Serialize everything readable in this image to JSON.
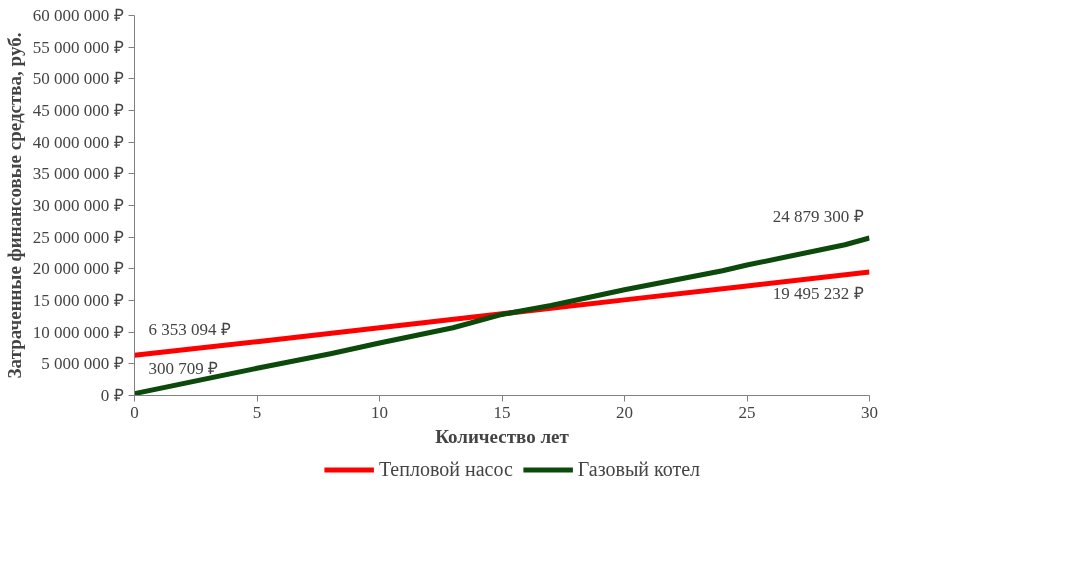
{
  "chart_data": {
    "type": "line",
    "xlabel": "Количество лет",
    "ylabel": "Затраченные финансовые средства, руб.",
    "xlim": [
      0,
      30
    ],
    "ylim": [
      0,
      60000000
    ],
    "xticks": [
      0,
      5,
      10,
      15,
      20,
      25,
      30
    ],
    "yticks": [
      {
        "value": 0,
        "label": "0 ₽"
      },
      {
        "value": 5000000,
        "label": "5 000 000 ₽"
      },
      {
        "value": 10000000,
        "label": "10 000 000 ₽"
      },
      {
        "value": 15000000,
        "label": "15 000 000 ₽"
      },
      {
        "value": 20000000,
        "label": "20 000 000 ₽"
      },
      {
        "value": 25000000,
        "label": "25 000 000 ₽"
      },
      {
        "value": 30000000,
        "label": "30 000 000 ₽"
      },
      {
        "value": 35000000,
        "label": "35 000 000 ₽"
      },
      {
        "value": 40000000,
        "label": "40 000 000 ₽"
      },
      {
        "value": 45000000,
        "label": "45 000 000 ₽"
      },
      {
        "value": 50000000,
        "label": "50 000 000 ₽"
      },
      {
        "value": 55000000,
        "label": "55 000 000 ₽"
      },
      {
        "value": 60000000,
        "label": "60 000 000 ₽"
      }
    ],
    "grid": false,
    "legend": "bottom",
    "marker": "none",
    "line_style": "solid",
    "series": [
      {
        "name": "Тепловой насос",
        "color": "#ff0000",
        "x": [
          0,
          5,
          10,
          15,
          20,
          25,
          30
        ],
        "values": [
          6353094,
          8500000,
          10700000,
          12900000,
          15100000,
          17300000,
          19495232
        ],
        "value_labels": [
          "6 353 094 ₽",
          null,
          null,
          null,
          null,
          null,
          "19 495 232 ₽"
        ]
      },
      {
        "name": "Газовый котел",
        "color": "#0b4a0b",
        "x": [
          0,
          5,
          8,
          10,
          13,
          15,
          17,
          20,
          24,
          25,
          29,
          30
        ],
        "values": [
          300709,
          4300000,
          6600000,
          8300000,
          10700000,
          12800000,
          14200000,
          16700000,
          19700000,
          20600000,
          23800000,
          24879300
        ],
        "value_labels": [
          "300 709 ₽",
          null,
          null,
          null,
          null,
          null,
          null,
          null,
          null,
          null,
          null,
          "24 879 300 ₽"
        ]
      }
    ]
  }
}
